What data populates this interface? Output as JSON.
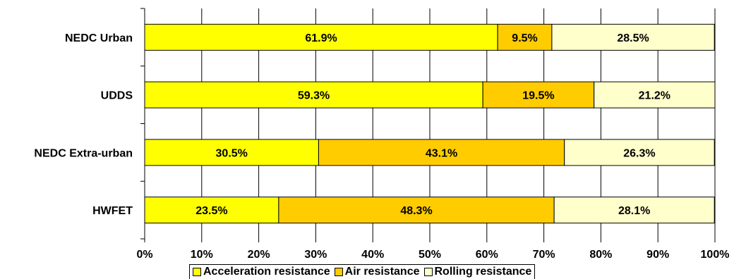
{
  "chart_data": {
    "type": "bar",
    "orientation": "horizontal",
    "stacked": true,
    "categories": [
      "NEDC Urban",
      "UDDS",
      "NEDC Extra-urban",
      "HWFET"
    ],
    "series": [
      {
        "name": "Acceleration resistance",
        "values": [
          61.9,
          59.3,
          30.5,
          23.5
        ],
        "color": "#ffff00"
      },
      {
        "name": "Air resistance",
        "values": [
          9.5,
          19.5,
          43.1,
          48.3
        ],
        "color": "#ffcc00"
      },
      {
        "name": "Rolling resistance",
        "values": [
          28.5,
          21.2,
          26.3,
          28.1
        ],
        "color": "#ffffcc"
      }
    ],
    "xticks": [
      "0%",
      "10%",
      "20%",
      "30%",
      "40%",
      "50%",
      "60%",
      "70%",
      "80%",
      "90%",
      "100%"
    ],
    "xlim": [
      0,
      100
    ],
    "grid": true,
    "legend_position": "bottom",
    "title": "",
    "xlabel": "",
    "ylabel": ""
  }
}
